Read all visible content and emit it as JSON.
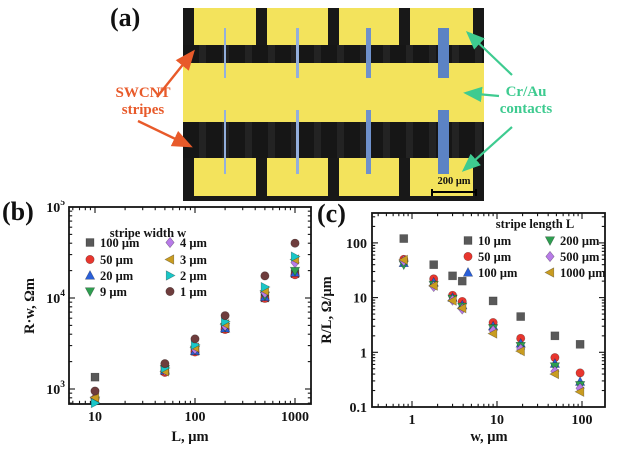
{
  "panel_a": {
    "label": "(a)",
    "micrograph": {
      "colors": {
        "gold": "#f3e35c",
        "dark": "#181818",
        "stripe_wide": "#5c83c4",
        "stripe_thin": "#93afdc"
      },
      "scale_bar_label": "200 μm"
    },
    "annotations": {
      "swcnt_line1": "SWCNT",
      "swcnt_line2": "stripes",
      "swcnt_color": "#e85a2a",
      "contacts_line1": "Cr/Au",
      "contacts_line2": "contacts",
      "contacts_color": "#3ecb90"
    }
  },
  "panel_b": {
    "label": "(b)"
  },
  "panel_c": {
    "label": "(c)"
  },
  "chart_data": [
    {
      "key": "b",
      "type": "scatter",
      "panel": "(b)",
      "legend_title": "stripe width w",
      "xlabel": "L, μm",
      "ylabel": "R·w, Ωm",
      "xscale": "log",
      "yscale": "log",
      "xlim": [
        5.5,
        1450
      ],
      "ylim": [
        680,
        100000
      ],
      "xticks": [
        10,
        100,
        1000
      ],
      "xtick_labels": [
        "10",
        "100",
        "1000"
      ],
      "yticks": [
        1000,
        10000,
        100000
      ],
      "ytick_labels": [
        "10^3",
        "10^4",
        "10^5"
      ],
      "x": [
        10,
        50,
        100,
        200,
        500,
        1000
      ],
      "series": [
        {
          "name": "100 μm",
          "marker": "square",
          "color": "#595959",
          "values": [
            1350,
            1580,
            2600,
            4600,
            10000,
            18500
          ]
        },
        {
          "name": "50 μm",
          "marker": "circle",
          "color": "#e8362e",
          "values": [
            780,
            1520,
            2550,
            4500,
            9900,
            18000
          ]
        },
        {
          "name": "20 μm",
          "marker": "triangle-up",
          "color": "#2a5fd8",
          "values": [
            760,
            1600,
            2620,
            4650,
            10300,
            19000
          ]
        },
        {
          "name": "9 μm",
          "marker": "triangle-down",
          "color": "#2e9e50",
          "values": [
            745,
            1650,
            2700,
            4800,
            10600,
            19800
          ]
        },
        {
          "name": "4 μm",
          "marker": "diamond",
          "color": "#b87be8",
          "values": [
            790,
            1600,
            2750,
            4950,
            11400,
            24500
          ]
        },
        {
          "name": "3 μm",
          "marker": "triangle-left",
          "color": "#c99c20",
          "values": [
            805,
            1560,
            2850,
            5150,
            12000,
            26500
          ]
        },
        {
          "name": "2 μm",
          "marker": "triangle-right",
          "color": "#19c7c7",
          "values": [
            700,
            1700,
            3050,
            5500,
            13200,
            28500
          ]
        },
        {
          "name": "1 μm",
          "marker": "circle",
          "color": "#6e3d3d",
          "values": [
            950,
            1900,
            3550,
            6400,
            17500,
            40000
          ]
        }
      ]
    },
    {
      "key": "c",
      "type": "scatter",
      "panel": "(c)",
      "legend_title": "stripe length L",
      "xlabel": "w, μm",
      "ylabel": "R/L, Ω/μm",
      "xscale": "log",
      "yscale": "log",
      "xlim": [
        0.34,
        186
      ],
      "ylim": [
        0.1,
        355
      ],
      "xticks": [
        1,
        10,
        100
      ],
      "xtick_labels": [
        "1",
        "10",
        "100"
      ],
      "yticks": [
        0.1,
        1,
        10,
        100
      ],
      "ytick_labels": [
        "0.1",
        "1",
        "10",
        "100"
      ],
      "x": [
        0.8,
        1.8,
        3.0,
        3.9,
        9,
        19,
        48,
        95
      ],
      "series": [
        {
          "name": "10 μm",
          "marker": "square",
          "color": "#595959",
          "values": [
            120,
            40,
            25,
            20,
            8.7,
            4.5,
            2.0,
            1.4
          ]
        },
        {
          "name": "50 μm",
          "marker": "circle",
          "color": "#e8362e",
          "values": [
            50,
            22,
            11,
            8.5,
            3.5,
            1.8,
            0.8,
            0.42
          ]
        },
        {
          "name": "100 μm",
          "marker": "triangle-up",
          "color": "#2a5fd8",
          "values": [
            43,
            19,
            10,
            7.3,
            3.0,
            1.45,
            0.62,
            0.29
          ]
        },
        {
          "name": "200 μm",
          "marker": "triangle-down",
          "color": "#2e9e50",
          "values": [
            40,
            17,
            9.5,
            6.8,
            2.75,
            1.3,
            0.55,
            0.25
          ]
        },
        {
          "name": "500 μm",
          "marker": "diamond",
          "color": "#b87be8",
          "values": [
            47,
            16,
            9.0,
            6.2,
            2.5,
            1.15,
            0.45,
            0.22
          ]
        },
        {
          "name": "1000 μm",
          "marker": "triangle-left",
          "color": "#c99c20",
          "values": [
            49,
            16.5,
            8.8,
            6.4,
            2.2,
            1.05,
            0.4,
            0.19
          ]
        }
      ]
    }
  ]
}
